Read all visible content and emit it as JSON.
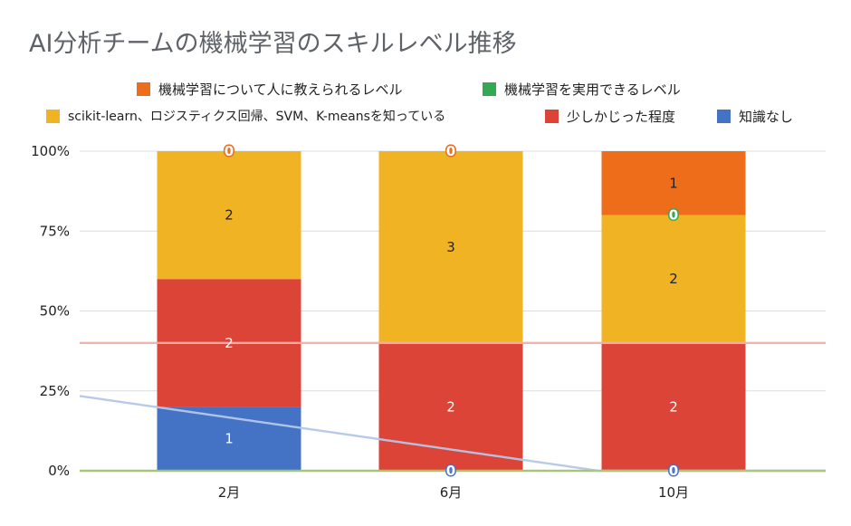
{
  "chart_data": {
    "type": "bar",
    "stacked": true,
    "percent_stacked": true,
    "title": "AI分析チームの機械学習のスキルレベル推移",
    "categories": [
      "2月",
      "6月",
      "10月"
    ],
    "y_ticks": [
      "0%",
      "25%",
      "50%",
      "75%",
      "100%"
    ],
    "ylim": [
      0,
      100
    ],
    "legend_position": "top",
    "series": [
      {
        "name": "知識なし",
        "color": "#4472c4",
        "values": [
          1,
          0,
          0
        ],
        "label_color": "#ffffff"
      },
      {
        "name": "少しかじった程度",
        "color": "#db4437",
        "values": [
          2,
          2,
          2
        ],
        "label_color": "#ffffff"
      },
      {
        "name": "scikit-learn、ロジスティクス回帰、SVM、K-meansを知っている",
        "color": "#f0b323",
        "values": [
          2,
          3,
          2
        ],
        "label_color": "#222222"
      },
      {
        "name": "機械学習を実用できるレベル",
        "color": "#34a853",
        "values": [
          0,
          0,
          0
        ],
        "label_color": "#222222"
      },
      {
        "name": "機械学習について人に教えられるレベル",
        "color": "#ee6d1a",
        "values": [
          0,
          0,
          1
        ],
        "label_color": "#222222"
      }
    ],
    "trendlines": [
      {
        "series": "知識なし",
        "color": "#b4c7e7"
      },
      {
        "series": "少しかじった程度",
        "color": "#f2aea5"
      },
      {
        "series": "機械学習を実用できるレベル",
        "color": "#a9c77a"
      }
    ],
    "legend": {
      "row1": [
        {
          "label": "機械学習について人に教えられるレベル",
          "color": "#ee6d1a"
        },
        {
          "label": "機械学習を実用できるレベル",
          "color": "#34a853"
        }
      ],
      "row2": [
        {
          "label": "scikit-learn、ロジスティクス回帰、SVM、K-meansを知っている",
          "color": "#f0b323"
        },
        {
          "label": "少しかじった程度",
          "color": "#db4437"
        },
        {
          "label": "知識なし",
          "color": "#4472c4"
        }
      ]
    }
  }
}
